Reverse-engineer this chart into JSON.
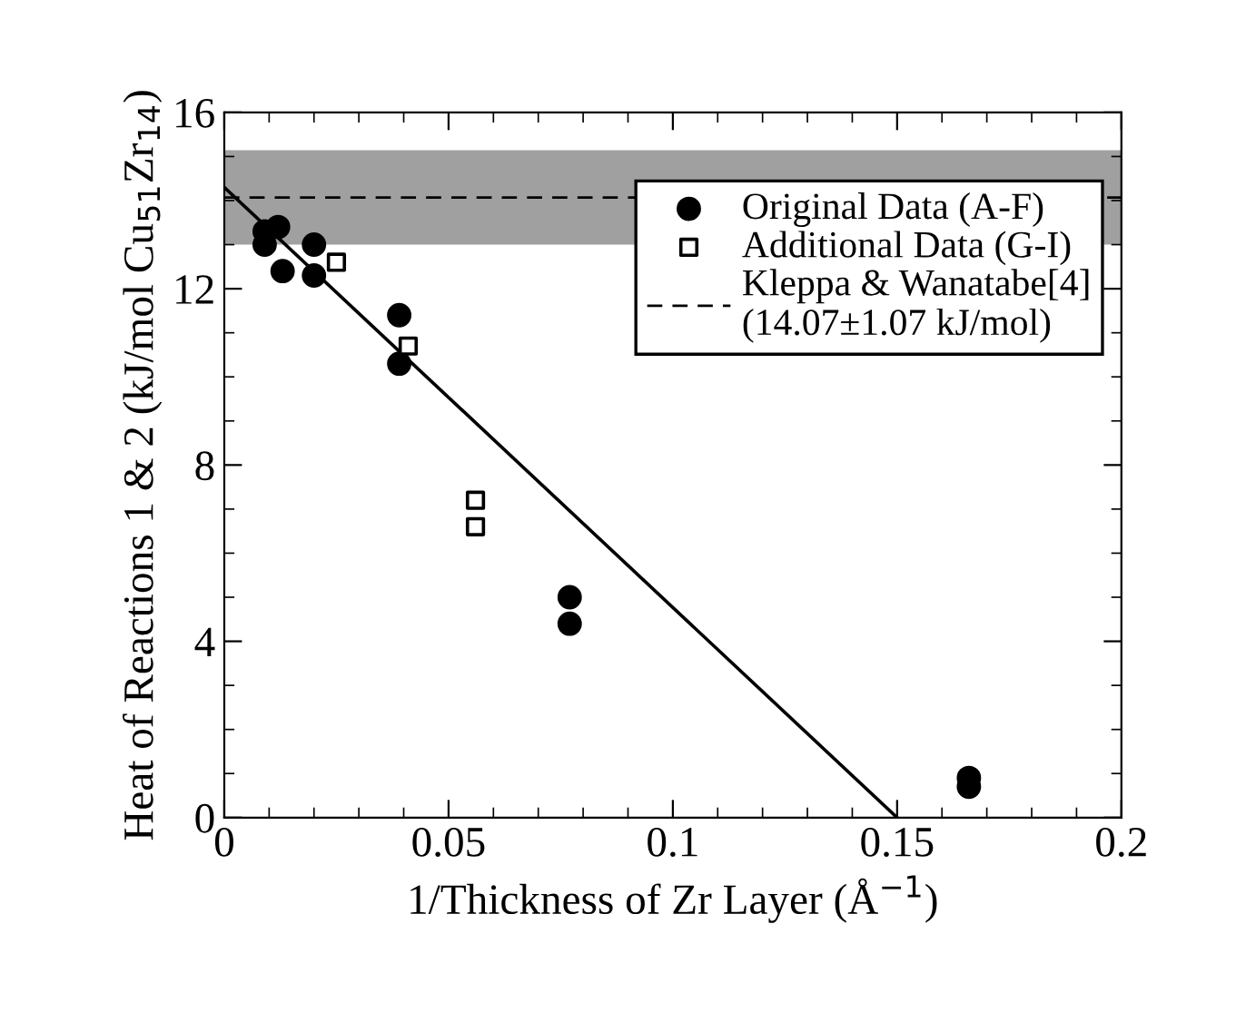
{
  "chart_data": {
    "type": "scatter",
    "xlabel": "1/Thickness of Zr Layer (Å$^{−1}$)",
    "ylabel": "Heat of Reactions 1 & 2 (kJ/mol Cu$_{51}$Zr$_{14}$)",
    "xlim": [
      0,
      0.2
    ],
    "ylim": [
      0,
      16
    ],
    "xticks": [
      0,
      0.05,
      0.1,
      0.15,
      0.2
    ],
    "yticks": [
      0,
      4,
      8,
      12,
      16
    ],
    "series": [
      {
        "name": "Original Data (A-F)",
        "marker": "circle",
        "color": "#000000",
        "x": [
          0.009,
          0.009,
          0.012,
          0.013,
          0.02,
          0.02,
          0.039,
          0.039,
          0.077,
          0.077,
          0.166,
          0.166
        ],
        "values": [
          13.0,
          13.3,
          13.4,
          12.4,
          13.0,
          12.3,
          11.4,
          10.3,
          5.0,
          4.4,
          0.9,
          0.7
        ]
      },
      {
        "name": "Additional Data (G-I)",
        "marker": "square",
        "color": "#000000",
        "x": [
          0.025,
          0.041,
          0.056,
          0.056
        ],
        "values": [
          12.6,
          10.7,
          7.2,
          6.6
        ]
      },
      {
        "type": "line",
        "color": "#000000",
        "x": [
          0,
          0.15
        ],
        "values": [
          14.3,
          0
        ]
      }
    ],
    "ref_lines": [
      {
        "axis": "y",
        "value": 14.07,
        "label": "Kleppa & Wanatabe[4]\n(14.07±1.07 kJ/mol)",
        "line_style": "dashed",
        "color": "#000000"
      }
    ],
    "bands": [
      {
        "axis": "y",
        "from": 13.0,
        "to": 15.14,
        "color": "#a0a0a0"
      }
    ],
    "legend": "right",
    "grid": false
  }
}
